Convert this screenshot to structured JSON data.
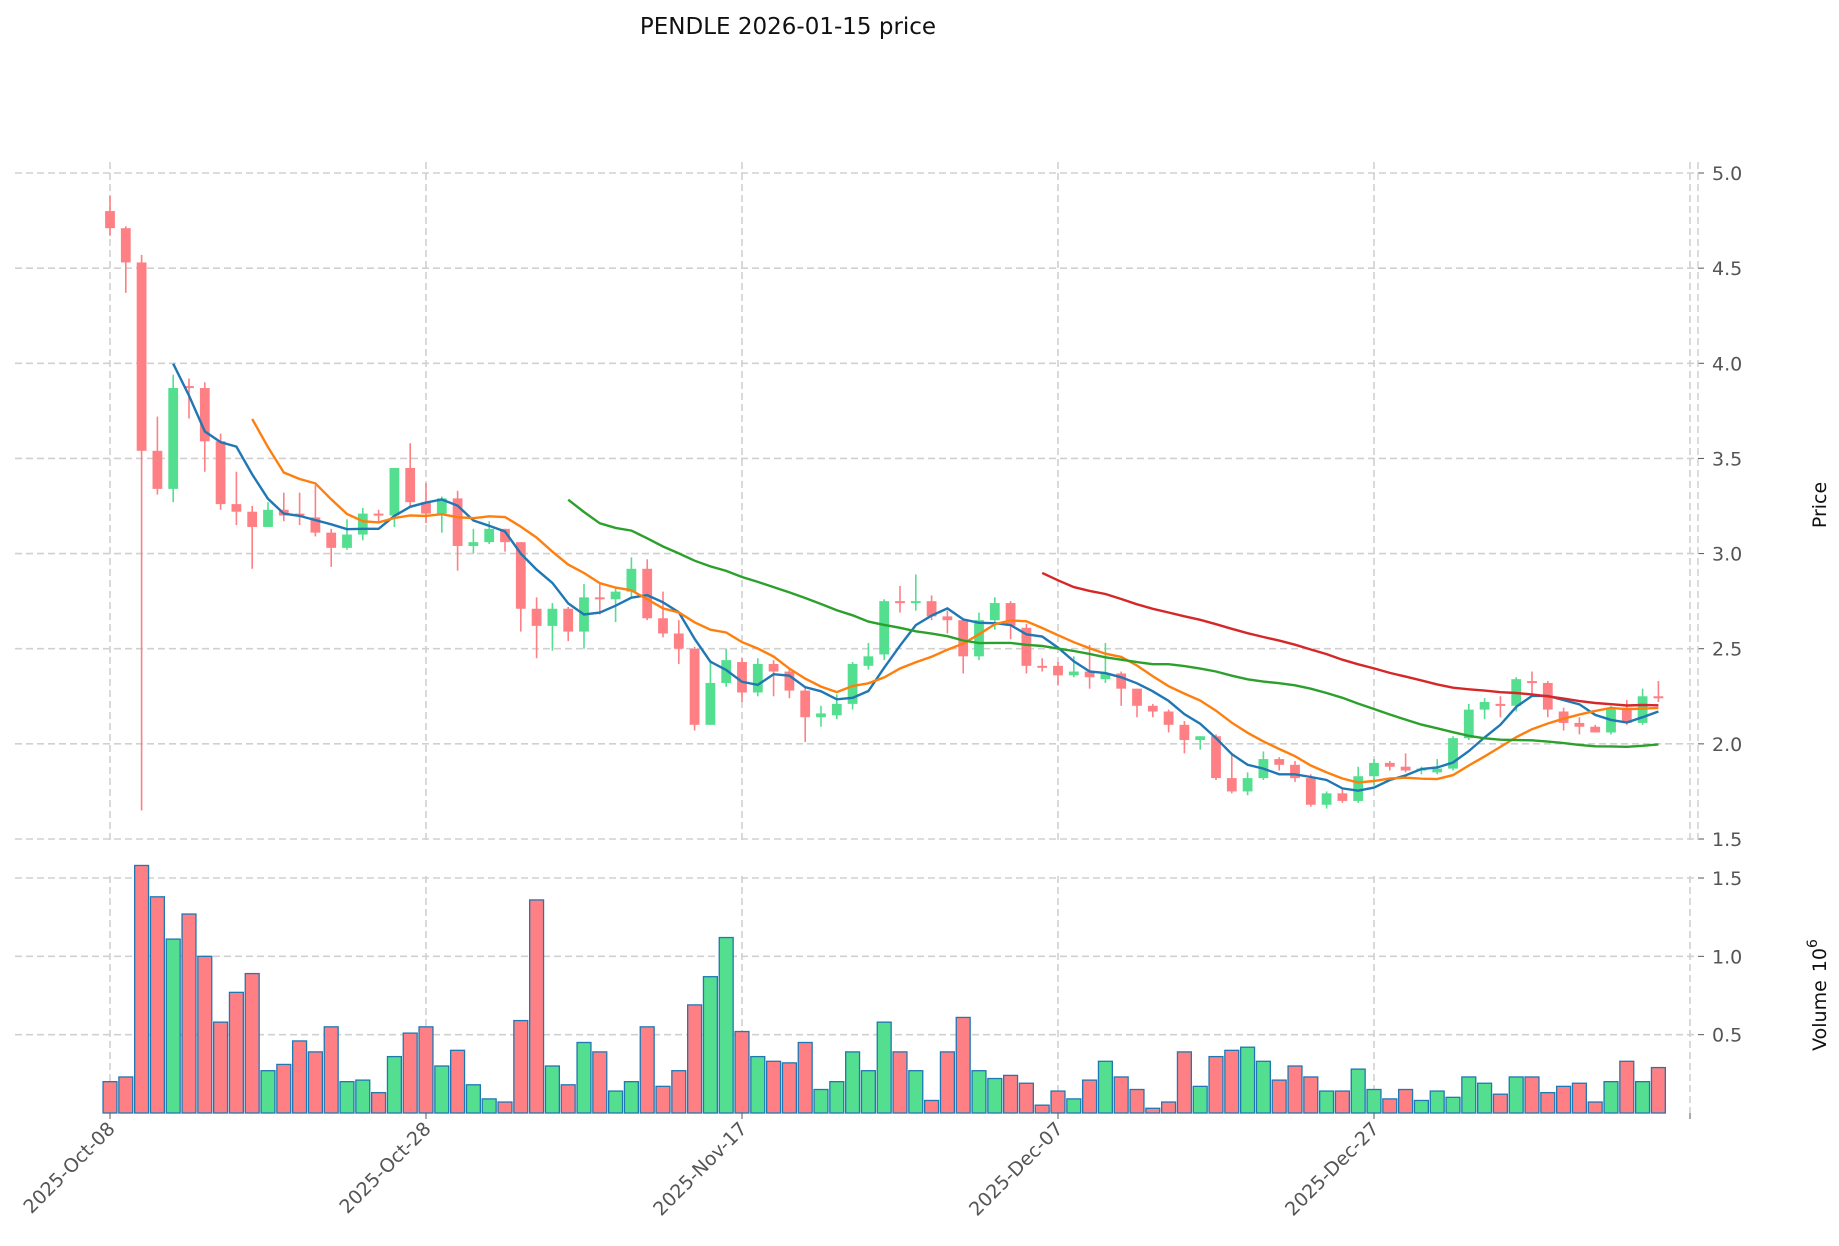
{
  "chart_data": {
    "type": "candlestick",
    "title": "PENDLE  2026-01-15  price",
    "ylabel_price": "Price",
    "ylabel_volume": "Volume",
    "ylabel_volume_exp": "10",
    "ylabel_volume_exp_power": "6",
    "start_date": "2025-10-08",
    "x_tick_labels": [
      "2025-Oct-08",
      "2025-Oct-28",
      "2025-Nov-17",
      "2025-Dec-07",
      "2025-Dec-27"
    ],
    "x_tick_indices": [
      0,
      20,
      40,
      60,
      80
    ],
    "price_ticks": [
      "1.5",
      "2.0",
      "2.5",
      "3.0",
      "3.5",
      "4.0",
      "4.5",
      "5.0"
    ],
    "price_ylim": [
      1.5,
      5.0
    ],
    "volume_ticks": [
      "0.5",
      "1.0",
      "1.5"
    ],
    "volume_ylim": [
      0,
      1.5
    ],
    "grid": true,
    "colors": {
      "up": "#53df8f",
      "down": "#fe8085",
      "edge": "#1f77b4",
      "ma_short": "#1f77b4",
      "ma_mid": "#ff7f0e",
      "ma_long": "#2ca02c",
      "ma_xlong": "#d62728"
    },
    "moving_averages": [
      {
        "window": 5,
        "color_key": "ma_short"
      },
      {
        "window": 10,
        "color_key": "ma_mid"
      },
      {
        "window": 30,
        "color_key": "ma_long"
      },
      {
        "window": 60,
        "color_key": "ma_xlong"
      }
    ],
    "ohlc": [
      [
        4.8,
        4.88,
        4.67,
        4.71
      ],
      [
        4.71,
        4.72,
        4.37,
        4.53
      ],
      [
        4.53,
        4.57,
        1.65,
        3.54
      ],
      [
        3.54,
        3.72,
        3.31,
        3.34
      ],
      [
        3.34,
        3.94,
        3.27,
        3.87
      ],
      [
        3.88,
        3.92,
        3.71,
        3.87
      ],
      [
        3.87,
        3.9,
        3.43,
        3.59
      ],
      [
        3.59,
        3.63,
        3.23,
        3.26
      ],
      [
        3.26,
        3.43,
        3.15,
        3.22
      ],
      [
        3.22,
        3.25,
        2.92,
        3.14
      ],
      [
        3.14,
        3.27,
        3.14,
        3.23
      ],
      [
        3.23,
        3.32,
        3.17,
        3.2
      ],
      [
        3.21,
        3.32,
        3.15,
        3.2
      ],
      [
        3.19,
        3.36,
        3.09,
        3.11
      ],
      [
        3.11,
        3.13,
        2.93,
        3.03
      ],
      [
        3.03,
        3.18,
        3.02,
        3.1
      ],
      [
        3.1,
        3.24,
        3.07,
        3.21
      ],
      [
        3.21,
        3.23,
        3.16,
        3.2
      ],
      [
        3.2,
        3.45,
        3.14,
        3.45
      ],
      [
        3.45,
        3.58,
        3.25,
        3.27
      ],
      [
        3.27,
        3.37,
        3.16,
        3.21
      ],
      [
        3.21,
        3.3,
        3.11,
        3.29
      ],
      [
        3.29,
        3.33,
        2.91,
        3.04
      ],
      [
        3.04,
        3.13,
        3.0,
        3.06
      ],
      [
        3.06,
        3.17,
        3.05,
        3.13
      ],
      [
        3.13,
        3.13,
        3.01,
        3.06
      ],
      [
        3.06,
        3.06,
        2.59,
        2.71
      ],
      [
        2.71,
        2.77,
        2.45,
        2.62
      ],
      [
        2.62,
        2.74,
        2.49,
        2.71
      ],
      [
        2.71,
        2.72,
        2.54,
        2.59
      ],
      [
        2.59,
        2.84,
        2.5,
        2.77
      ],
      [
        2.77,
        2.84,
        2.68,
        2.76
      ],
      [
        2.76,
        2.82,
        2.64,
        2.8
      ],
      [
        2.8,
        2.98,
        2.77,
        2.92
      ],
      [
        2.92,
        2.97,
        2.65,
        2.66
      ],
      [
        2.66,
        2.8,
        2.56,
        2.58
      ],
      [
        2.58,
        2.65,
        2.42,
        2.5
      ],
      [
        2.5,
        2.51,
        2.07,
        2.1
      ],
      [
        2.1,
        2.44,
        2.1,
        2.32
      ],
      [
        2.32,
        2.5,
        2.3,
        2.44
      ],
      [
        2.43,
        2.45,
        2.22,
        2.27
      ],
      [
        2.27,
        2.45,
        2.25,
        2.42
      ],
      [
        2.42,
        2.44,
        2.25,
        2.38
      ],
      [
        2.38,
        2.4,
        2.24,
        2.28
      ],
      [
        2.28,
        2.3,
        2.01,
        2.14
      ],
      [
        2.14,
        2.2,
        2.09,
        2.16
      ],
      [
        2.15,
        2.26,
        2.13,
        2.21
      ],
      [
        2.21,
        2.43,
        2.18,
        2.42
      ],
      [
        2.41,
        2.53,
        2.39,
        2.46
      ],
      [
        2.47,
        2.76,
        2.44,
        2.75
      ],
      [
        2.75,
        2.83,
        2.69,
        2.74
      ],
      [
        2.74,
        2.89,
        2.7,
        2.75
      ],
      [
        2.75,
        2.78,
        2.65,
        2.67
      ],
      [
        2.67,
        2.7,
        2.58,
        2.65
      ],
      [
        2.65,
        2.65,
        2.37,
        2.46
      ],
      [
        2.46,
        2.69,
        2.44,
        2.65
      ],
      [
        2.65,
        2.77,
        2.6,
        2.74
      ],
      [
        2.74,
        2.75,
        2.55,
        2.62
      ],
      [
        2.61,
        2.63,
        2.37,
        2.41
      ],
      [
        2.41,
        2.45,
        2.38,
        2.4
      ],
      [
        2.41,
        2.43,
        2.31,
        2.36
      ],
      [
        2.36,
        2.46,
        2.35,
        2.38
      ],
      [
        2.38,
        2.52,
        2.29,
        2.35
      ],
      [
        2.34,
        2.53,
        2.32,
        2.37
      ],
      [
        2.37,
        2.38,
        2.2,
        2.29
      ],
      [
        2.29,
        2.29,
        2.14,
        2.2
      ],
      [
        2.2,
        2.21,
        2.14,
        2.17
      ],
      [
        2.17,
        2.18,
        2.06,
        2.1
      ],
      [
        2.1,
        2.12,
        1.95,
        2.02
      ],
      [
        2.02,
        2.04,
        1.97,
        2.04
      ],
      [
        2.04,
        2.05,
        1.81,
        1.82
      ],
      [
        1.82,
        1.95,
        1.74,
        1.75
      ],
      [
        1.75,
        1.85,
        1.73,
        1.82
      ],
      [
        1.82,
        1.96,
        1.81,
        1.92
      ],
      [
        1.92,
        1.93,
        1.86,
        1.89
      ],
      [
        1.89,
        1.91,
        1.8,
        1.82
      ],
      [
        1.82,
        1.84,
        1.67,
        1.68
      ],
      [
        1.68,
        1.75,
        1.66,
        1.74
      ],
      [
        1.74,
        1.76,
        1.69,
        1.7
      ],
      [
        1.7,
        1.88,
        1.69,
        1.83
      ],
      [
        1.83,
        1.92,
        1.78,
        1.9
      ],
      [
        1.9,
        1.91,
        1.86,
        1.88
      ],
      [
        1.88,
        1.95,
        1.85,
        1.86
      ],
      [
        1.86,
        1.88,
        1.84,
        1.87
      ],
      [
        1.85,
        1.92,
        1.84,
        1.87
      ],
      [
        1.87,
        2.04,
        1.86,
        2.03
      ],
      [
        2.03,
        2.21,
        2.02,
        2.18
      ],
      [
        2.18,
        2.24,
        2.13,
        2.22
      ],
      [
        2.21,
        2.25,
        2.14,
        2.2
      ],
      [
        2.2,
        2.35,
        2.17,
        2.34
      ],
      [
        2.33,
        2.38,
        2.25,
        2.32
      ],
      [
        2.32,
        2.33,
        2.14,
        2.18
      ],
      [
        2.17,
        2.19,
        2.07,
        2.11
      ],
      [
        2.11,
        2.14,
        2.05,
        2.09
      ],
      [
        2.09,
        2.1,
        2.06,
        2.06
      ],
      [
        2.06,
        2.2,
        2.05,
        2.19
      ],
      [
        2.19,
        2.23,
        2.1,
        2.11
      ],
      [
        2.11,
        2.29,
        2.1,
        2.25
      ],
      [
        2.25,
        2.33,
        2.22,
        2.24
      ]
    ],
    "volume": [
      0.2,
      0.23,
      1.58,
      1.38,
      1.11,
      1.27,
      1.0,
      0.58,
      0.77,
      0.89,
      0.27,
      0.31,
      0.46,
      0.39,
      0.55,
      0.2,
      0.21,
      0.13,
      0.36,
      0.51,
      0.55,
      0.3,
      0.4,
      0.18,
      0.09,
      0.07,
      0.59,
      1.36,
      0.3,
      0.18,
      0.45,
      0.39,
      0.14,
      0.2,
      0.55,
      0.17,
      0.27,
      0.69,
      0.87,
      1.12,
      0.52,
      0.36,
      0.33,
      0.32,
      0.45,
      0.15,
      0.2,
      0.39,
      0.27,
      0.58,
      0.39,
      0.27,
      0.08,
      0.39,
      0.61,
      0.27,
      0.22,
      0.24,
      0.19,
      0.05,
      0.14,
      0.09,
      0.21,
      0.33,
      0.23,
      0.15,
      0.03,
      0.07,
      0.39,
      0.17,
      0.36,
      0.4,
      0.42,
      0.33,
      0.21,
      0.3,
      0.23,
      0.14,
      0.14,
      0.28,
      0.15,
      0.09,
      0.15,
      0.08,
      0.14,
      0.1,
      0.23,
      0.19,
      0.12,
      0.23,
      0.23,
      0.13,
      0.17,
      0.19,
      0.07,
      0.2,
      0.33,
      0.2,
      0.29
    ]
  }
}
